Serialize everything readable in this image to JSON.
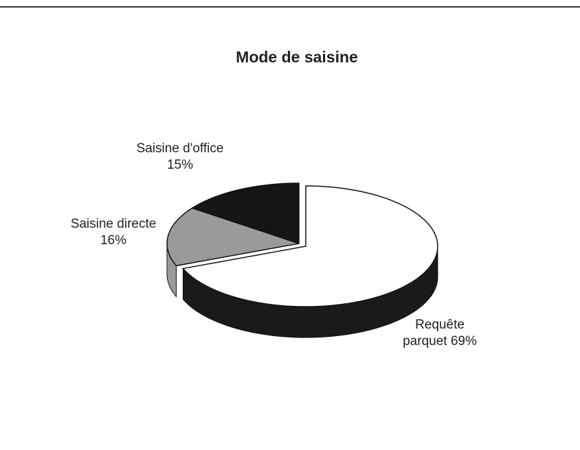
{
  "chart_data": {
    "type": "pie3d",
    "title": "Mode de saisine",
    "categories": [
      "Requête parquet",
      "Saisine directe",
      "Saisine d'office"
    ],
    "values": [
      69,
      16,
      15
    ],
    "value_labels": [
      "69%",
      "16%",
      "15%"
    ],
    "colors": [
      "#ffffff",
      "#9a9a9a",
      "#151515"
    ]
  }
}
